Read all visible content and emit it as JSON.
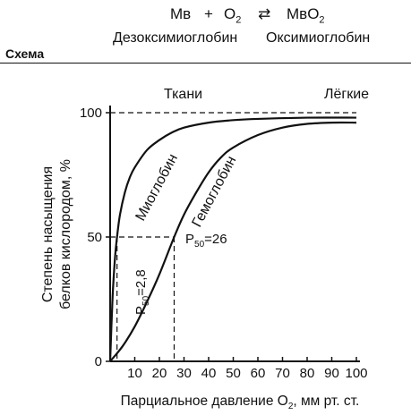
{
  "header": {
    "equation": {
      "left": "Mв",
      "plus": "+",
      "o2_letter": "O",
      "o2_sub": "2",
      "arrow": "⇄",
      "right": "MвO",
      "right_sub": "2"
    },
    "left_name": "Дезоксимиоглобин",
    "right_name": "Оксимиоглобин",
    "section_label": "Схема"
  },
  "chart_data": {
    "type": "line",
    "xlabel": "Парциальное давление O",
    "xlabel_sub": "2",
    "xlabel_units": ", мм рт. ст.",
    "ylabel_line1": "Степень насыщения",
    "ylabel_line2": "белков кислородом, %",
    "x_ticks": [
      10,
      20,
      30,
      40,
      50,
      60,
      70,
      80,
      90,
      100
    ],
    "y_ticks": [
      0,
      50,
      100
    ],
    "xlim": [
      0,
      100
    ],
    "ylim": [
      0,
      100
    ],
    "grid": false,
    "top_labels": {
      "tissues": "Ткани",
      "lungs": "Лёгкие"
    },
    "series": [
      {
        "name": "Миоглобин",
        "x": [
          0,
          1,
          2,
          2.8,
          4,
          6,
          8,
          10,
          15,
          20,
          25,
          30,
          40,
          50,
          60,
          80,
          100
        ],
        "y": [
          0,
          26,
          42,
          50,
          59,
          68,
          74,
          78,
          85,
          89,
          92,
          94,
          96,
          97,
          97.5,
          98,
          98
        ]
      },
      {
        "name": "Гемоглобин",
        "x": [
          0,
          5,
          10,
          15,
          20,
          26,
          30,
          35,
          40,
          45,
          50,
          60,
          70,
          80,
          90,
          100
        ],
        "y": [
          0,
          6,
          14,
          24,
          35,
          50,
          59,
          68,
          76,
          82,
          86,
          91,
          94,
          95.5,
          96,
          96
        ]
      }
    ],
    "annotations": {
      "p50_myo_prefix": "P",
      "p50_myo_sub": "50",
      "p50_myo_value": "=2,8",
      "p50_hb_prefix": "P",
      "p50_hb_sub": "50",
      "p50_hb_value": "=26"
    }
  }
}
